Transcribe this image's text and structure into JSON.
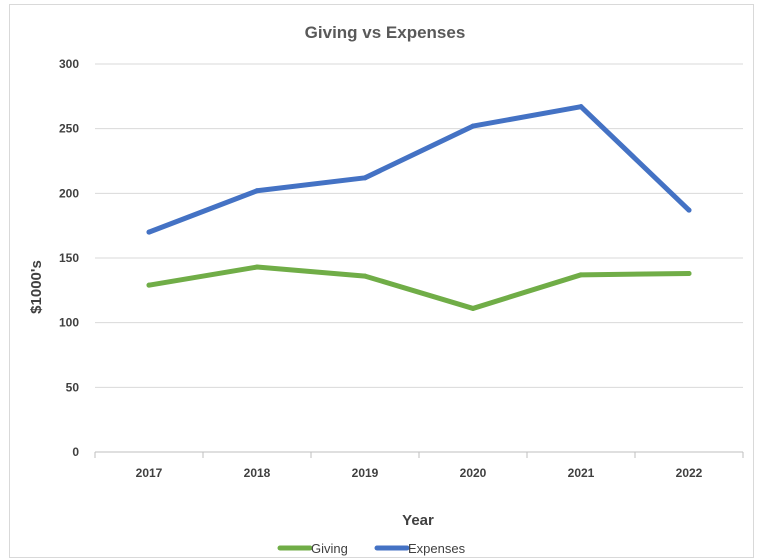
{
  "chart_data": {
    "type": "line",
    "title": "Giving vs Expenses",
    "xlabel": "Year",
    "ylabel": "$1000's",
    "categories": [
      "2017",
      "2018",
      "2019",
      "2020",
      "2021",
      "2022"
    ],
    "ylim": [
      0,
      300
    ],
    "yticks": [
      0,
      50,
      100,
      150,
      200,
      250,
      300
    ],
    "grid": true,
    "legend_position": "bottom",
    "series": [
      {
        "name": "Giving",
        "color": "#70ad47",
        "values": [
          129,
          143,
          136,
          111,
          137,
          138
        ]
      },
      {
        "name": "Expenses",
        "color": "#4472c4",
        "values": [
          170,
          202,
          212,
          252,
          267,
          187
        ]
      }
    ],
    "gridline_color": "#d9d9d9",
    "axis_color": "#bfbfbf"
  }
}
